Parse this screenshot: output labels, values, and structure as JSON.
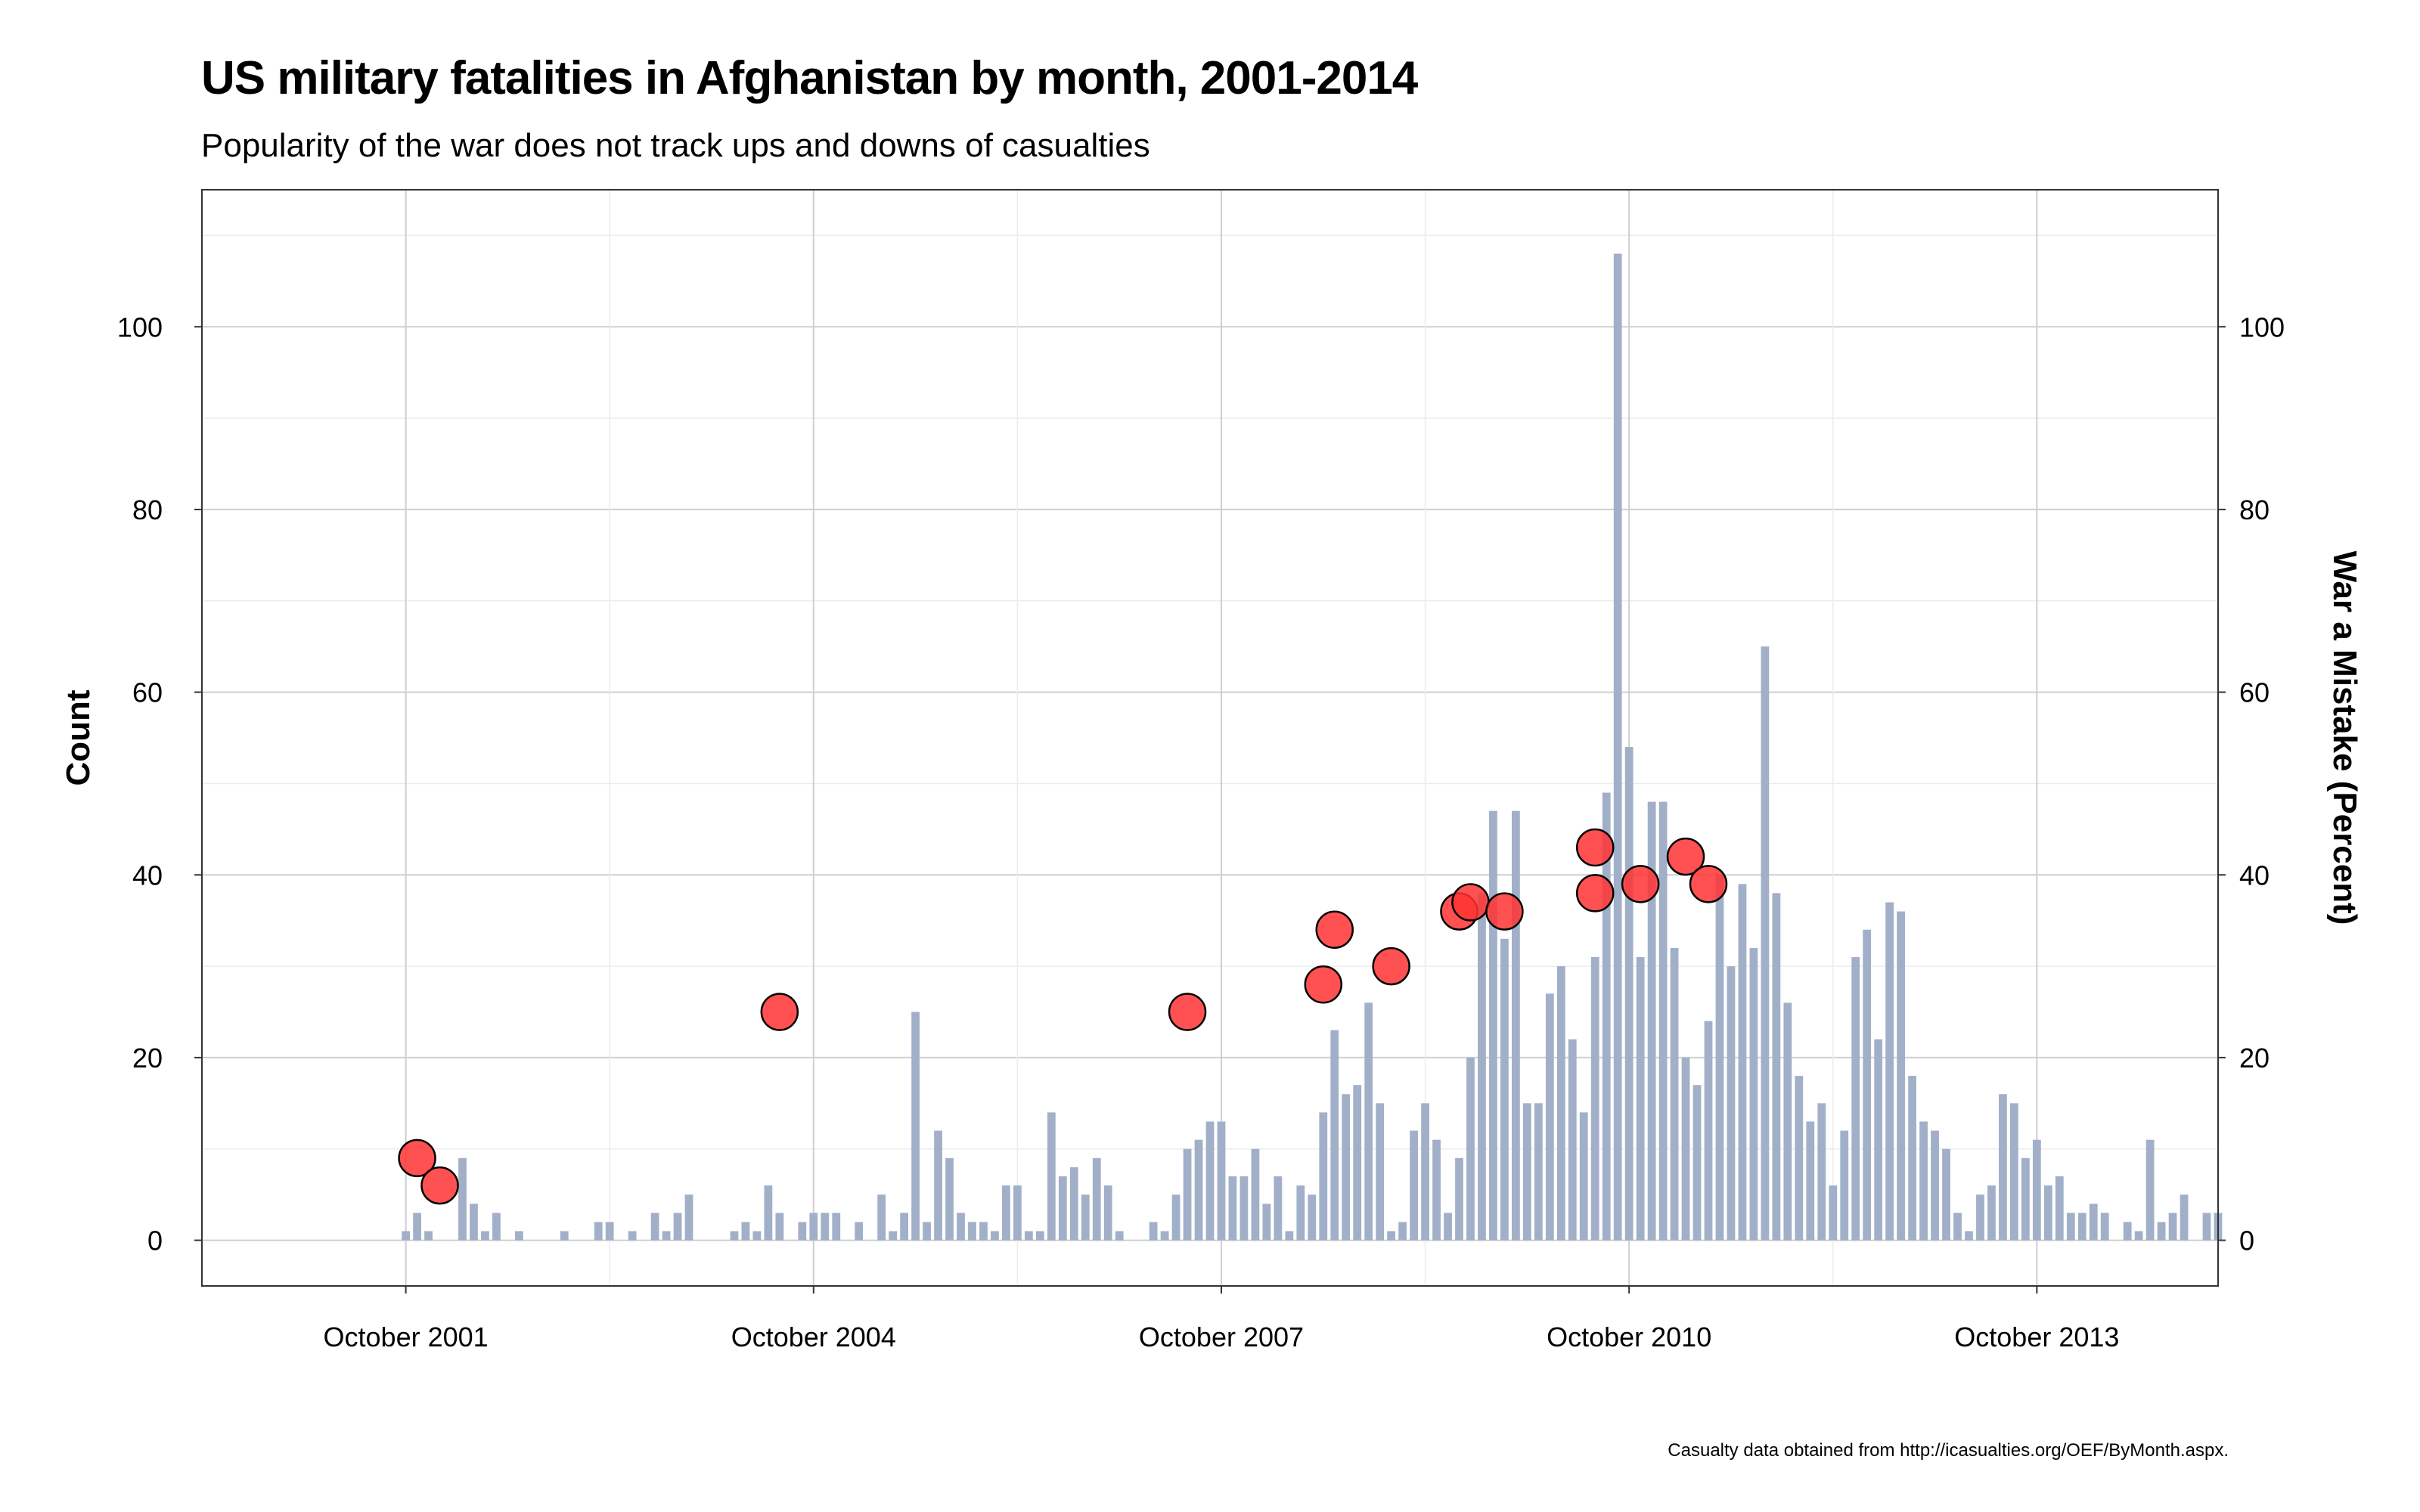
{
  "chart_data": {
    "type": "bar",
    "title": "US military fatalities in Afghanistan by month, 2001-2014",
    "subtitle": "Popularity of the war does not track ups and downs of casualties",
    "caption": "Casualty data obtained from http://icasualties.org/OEF/ByMonth.aspx.",
    "ylabel": "Count",
    "y2label": "War a Mistake (Percent)",
    "ylim": [
      -5,
      115
    ],
    "yticks": [
      0,
      20,
      40,
      60,
      80,
      100
    ],
    "xlim": [
      "2000-04",
      "2015-02"
    ],
    "xticks": [
      {
        "date": "2001-10",
        "label": "October 2001"
      },
      {
        "date": "2004-10",
        "label": "October 2004"
      },
      {
        "date": "2007-10",
        "label": "October 2007"
      },
      {
        "date": "2010-10",
        "label": "October 2010"
      },
      {
        "date": "2013-10",
        "label": "October 2013"
      }
    ],
    "grid": true,
    "colors": {
      "bars": "#A1B0C8",
      "points": "#FF3333",
      "point_stroke": "#000000"
    },
    "series": [
      {
        "name": "Count",
        "kind": "bar",
        "start": "2001-10",
        "values": [
          1,
          3,
          1,
          0,
          0,
          9,
          4,
          1,
          3,
          0,
          1,
          0,
          0,
          0,
          1,
          0,
          0,
          2,
          2,
          0,
          1,
          0,
          3,
          1,
          3,
          5,
          0,
          0,
          0,
          1,
          2,
          1,
          6,
          3,
          0,
          2,
          3,
          3,
          3,
          0,
          2,
          0,
          5,
          1,
          3,
          25,
          2,
          12,
          9,
          3,
          2,
          2,
          1,
          6,
          6,
          1,
          1,
          14,
          7,
          8,
          5,
          9,
          6,
          1,
          0,
          0,
          2,
          1,
          5,
          10,
          11,
          13,
          13,
          7,
          7,
          10,
          4,
          7,
          1,
          6,
          5,
          14,
          23,
          16,
          17,
          26,
          15,
          1,
          2,
          12,
          15,
          11,
          3,
          9,
          20,
          38,
          47,
          33,
          47,
          15,
          15,
          27,
          30,
          22,
          14,
          31,
          49,
          108,
          54,
          31,
          48,
          48,
          32,
          20,
          17,
          24,
          40,
          30,
          39,
          32,
          65,
          38,
          26,
          18,
          13,
          15,
          6,
          12,
          31,
          34,
          22,
          37,
          36,
          18,
          13,
          12,
          10,
          3,
          1,
          5,
          6,
          16,
          15,
          9,
          11,
          6,
          7,
          3,
          3,
          4,
          3,
          0,
          2,
          1,
          11,
          2,
          3,
          5,
          0,
          3,
          3
        ]
      },
      {
        "name": "War a Mistake (Percent)",
        "kind": "point",
        "points": [
          {
            "date": "2001-11",
            "value": 9
          },
          {
            "date": "2002-01",
            "value": 6
          },
          {
            "date": "2004-07",
            "value": 25
          },
          {
            "date": "2007-07",
            "value": 25
          },
          {
            "date": "2008-07",
            "value": 28
          },
          {
            "date": "2008-08",
            "value": 34
          },
          {
            "date": "2009-01",
            "value": 30
          },
          {
            "date": "2009-07",
            "value": 36
          },
          {
            "date": "2009-08",
            "value": 37
          },
          {
            "date": "2009-11",
            "value": 36
          },
          {
            "date": "2010-07",
            "value": 43
          },
          {
            "date": "2010-07",
            "value": 38
          },
          {
            "date": "2010-11",
            "value": 39
          },
          {
            "date": "2011-03",
            "value": 42
          },
          {
            "date": "2011-05",
            "value": 39
          }
        ]
      }
    ]
  }
}
